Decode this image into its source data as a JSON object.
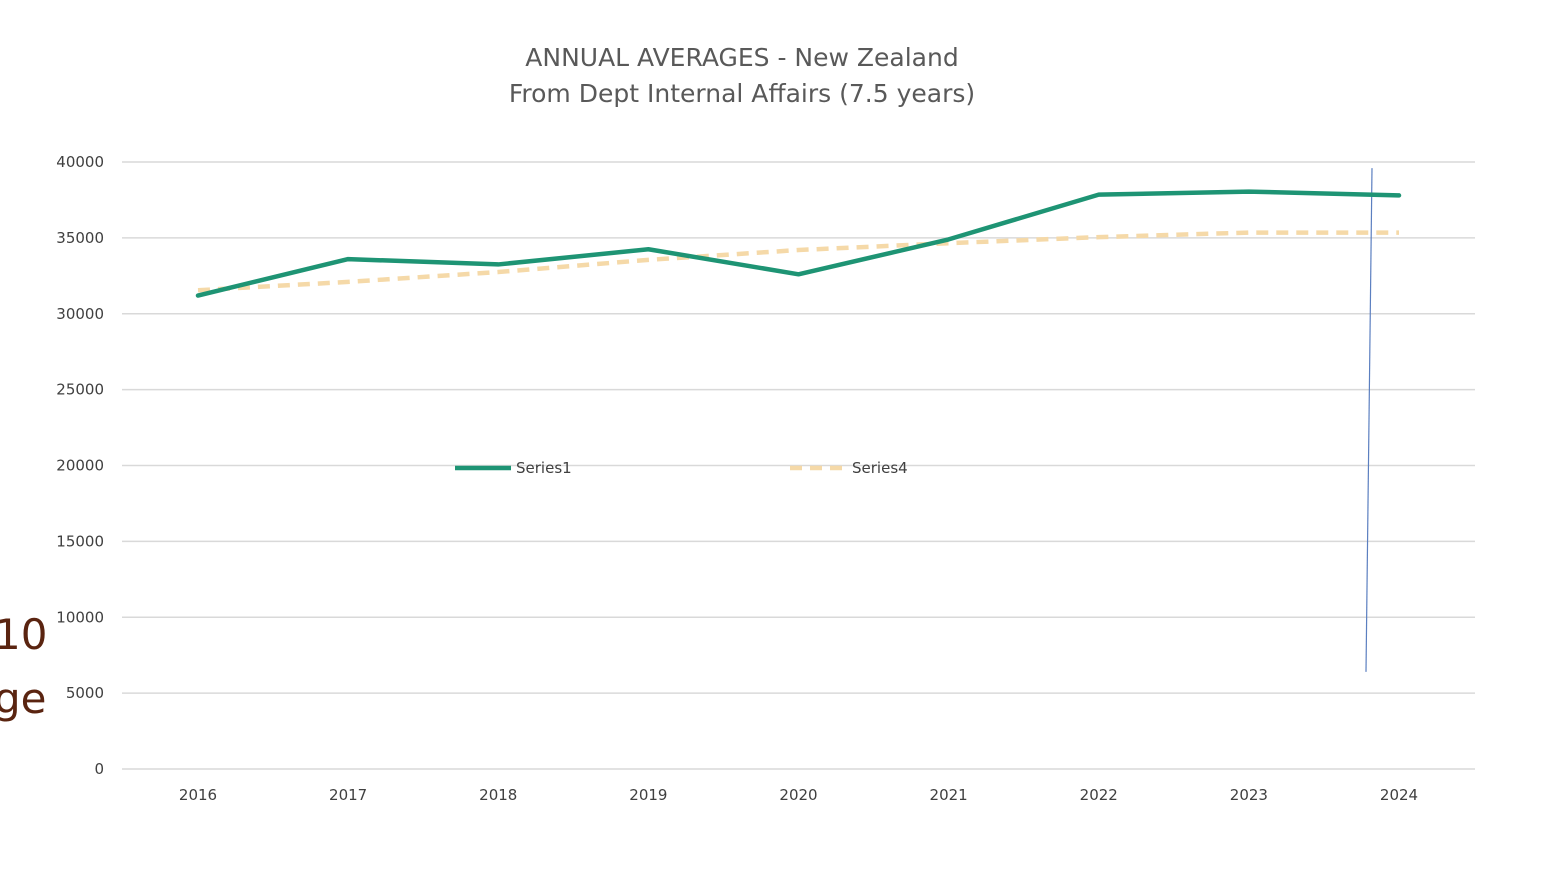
{
  "chart_data": {
    "type": "line",
    "title": [
      "ANNUAL AVERAGES - New Zealand",
      "From Dept Internal Affairs (7.5 years)"
    ],
    "categories": [
      "2016",
      "2017",
      "2018",
      "2019",
      "2020",
      "2021",
      "2022",
      "2023",
      "2024"
    ],
    "ylim": [
      0,
      40000
    ],
    "yticks": [
      "0",
      "5000",
      "10000",
      "15000",
      "20000",
      "25000",
      "30000",
      "35000",
      "40000"
    ],
    "grid": true,
    "legend_position": "center",
    "series": [
      {
        "name": "Series1",
        "color": "#1e9474",
        "style": "solid",
        "values": [
          31200,
          33600,
          33250,
          34250,
          32600,
          34900,
          37850,
          38050,
          37800
        ]
      },
      {
        "name": "Series4",
        "color": "#f5d9a8",
        "style": "dashed",
        "values": [
          31550,
          32100,
          32750,
          33550,
          34200,
          34650,
          35050,
          35350,
          35350
        ]
      }
    ],
    "annotation_line": {
      "color": "#5b7fc0",
      "y_range": [
        6400,
        39600
      ]
    }
  },
  "background_text": [
    "10",
    "ge"
  ]
}
